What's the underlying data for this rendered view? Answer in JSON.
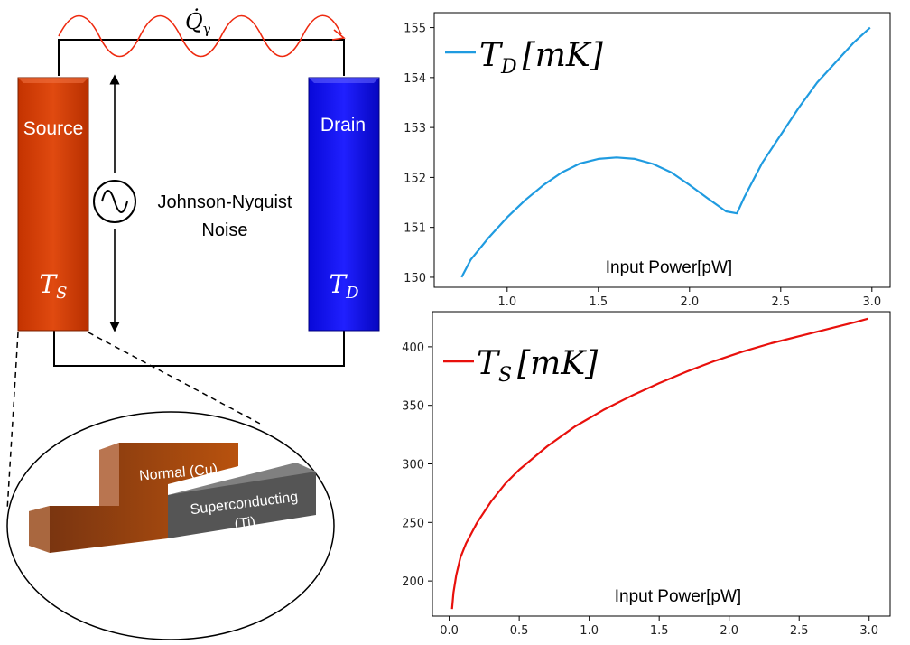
{
  "circuit": {
    "heat_flow_label": "Q̇",
    "heat_flow_subscript": "γ",
    "source_label": "Source",
    "source_temp_symbol": "T",
    "source_temp_subscript": "S",
    "drain_label": "Drain",
    "drain_temp_symbol": "T",
    "drain_temp_subscript": "D",
    "noise_label_line1": "Johnson-Nyquist",
    "noise_label_line2": "Noise",
    "colors": {
      "source": "#d63c00",
      "drain": "#1010ee",
      "wave": "#ee2a10"
    }
  },
  "inset": {
    "normal_label": "Normal (Cu)",
    "superconducting_label_line1": "Superconducting",
    "superconducting_label_line2": "(Ti)",
    "colors": {
      "copper": "#9c4513",
      "titanium": "#555555"
    }
  },
  "chart_data": [
    {
      "type": "line",
      "legend": "T_D [mK]",
      "legend_symbol": "T",
      "legend_subscript": "D",
      "legend_unit": "[mK]",
      "xlabel": "Input Power[pW]",
      "color": "#1f9be0",
      "xlim": [
        0.6,
        3.1
      ],
      "ylim": [
        149.8,
        155.3
      ],
      "xticks": [
        1.0,
        1.5,
        2.0,
        2.5,
        3.0
      ],
      "yticks": [
        150,
        151,
        152,
        153,
        154,
        155
      ],
      "x": [
        0.75,
        0.8,
        0.9,
        1.0,
        1.1,
        1.2,
        1.3,
        1.4,
        1.5,
        1.6,
        1.7,
        1.8,
        1.9,
        2.0,
        2.1,
        2.2,
        2.26,
        2.3,
        2.4,
        2.5,
        2.6,
        2.7,
        2.8,
        2.9,
        2.99
      ],
      "y": [
        150.0,
        150.35,
        150.8,
        151.2,
        151.55,
        151.85,
        152.1,
        152.28,
        152.37,
        152.4,
        152.37,
        152.27,
        152.1,
        151.85,
        151.58,
        151.32,
        151.28,
        151.6,
        152.3,
        152.85,
        153.4,
        153.9,
        154.3,
        154.7,
        155.0
      ]
    },
    {
      "type": "line",
      "legend": "T_S [mK]",
      "legend_symbol": "T",
      "legend_subscript": "S",
      "legend_unit": "[mK]",
      "xlabel": "Input Power[pW]",
      "color": "#e8100c",
      "xlim": [
        -0.12,
        3.15
      ],
      "ylim": [
        170,
        430
      ],
      "xticks": [
        0.0,
        0.5,
        1.0,
        1.5,
        2.0,
        2.5,
        3.0
      ],
      "yticks": [
        200,
        250,
        300,
        350,
        400
      ],
      "x": [
        0.02,
        0.03,
        0.05,
        0.08,
        0.12,
        0.2,
        0.3,
        0.4,
        0.5,
        0.7,
        0.9,
        1.1,
        1.3,
        1.5,
        1.7,
        1.9,
        2.1,
        2.3,
        2.5,
        2.7,
        2.9,
        2.99
      ],
      "y": [
        176,
        190,
        205,
        220,
        232,
        250,
        268,
        283,
        295,
        315,
        332,
        346,
        358,
        369,
        379,
        388,
        396,
        403,
        409,
        415,
        421,
        424
      ]
    }
  ]
}
